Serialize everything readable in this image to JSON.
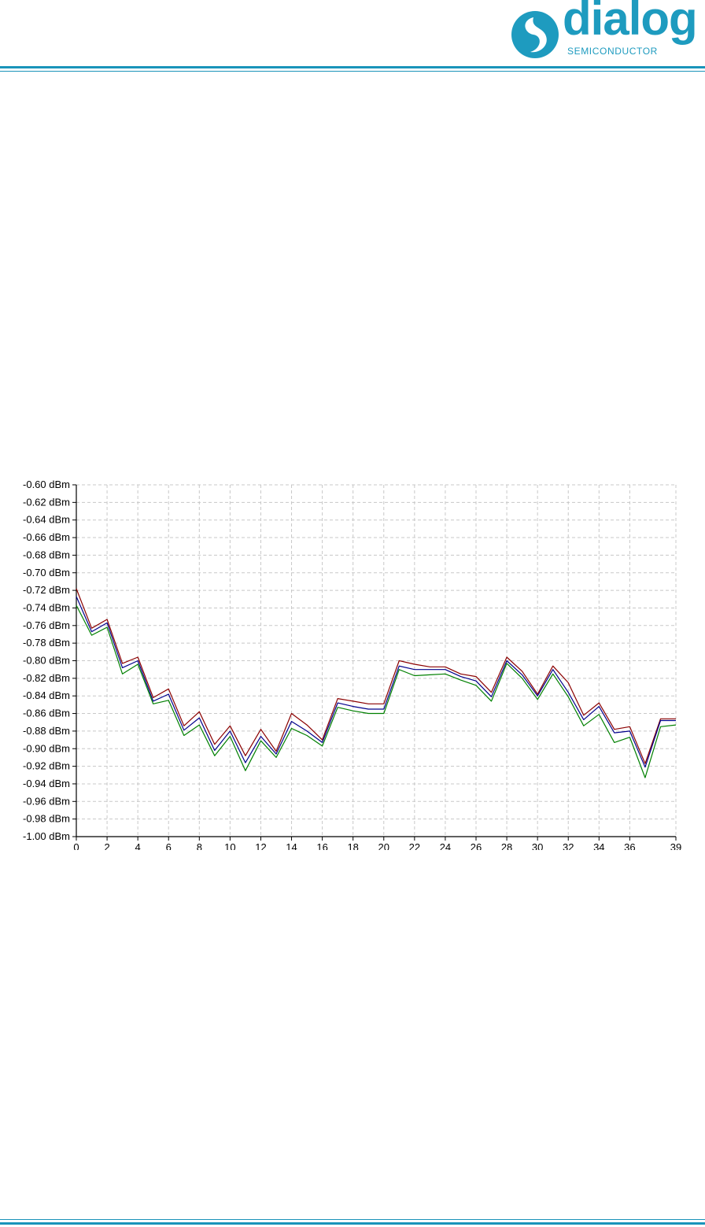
{
  "header": {
    "logo_text": "dialog",
    "logo_subtext": "SEMICONDUCTOR",
    "brand_color": "#1e9bbf"
  },
  "chart_data": {
    "type": "line",
    "title": "",
    "xlabel": "",
    "ylabel": "",
    "xlim": [
      0,
      39
    ],
    "ylim": [
      -1.0,
      -0.6
    ],
    "grid": true,
    "x_ticks": [
      "0",
      "2",
      "4",
      "6",
      "8",
      "10",
      "12",
      "14",
      "16",
      "18",
      "20",
      "22",
      "24",
      "26",
      "28",
      "30",
      "32",
      "34",
      "36",
      "39"
    ],
    "y_ticks": [
      "-0.60 dBm",
      "-0.62 dBm",
      "-0.64 dBm",
      "-0.66 dBm",
      "-0.68 dBm",
      "-0.70 dBm",
      "-0.72 dBm",
      "-0.74 dBm",
      "-0.76 dBm",
      "-0.78 dBm",
      "-0.80 dBm",
      "-0.82 dBm",
      "-0.84 dBm",
      "-0.86 dBm",
      "-0.88 dBm",
      "-0.90 dBm",
      "-0.92 dBm",
      "-0.94 dBm",
      "-0.96 dBm",
      "-0.98 dBm",
      "-1.00 dBm"
    ],
    "x": [
      0,
      1,
      2,
      3,
      4,
      5,
      6,
      7,
      8,
      9,
      10,
      11,
      12,
      13,
      14,
      15,
      16,
      17,
      18,
      19,
      20,
      21,
      22,
      23,
      24,
      25,
      26,
      27,
      28,
      29,
      30,
      31,
      32,
      33,
      34,
      35,
      36,
      37,
      38,
      39
    ],
    "series": [
      {
        "color": "#8b0000",
        "values": [
          -0.718,
          -0.763,
          -0.753,
          -0.803,
          -0.796,
          -0.842,
          -0.832,
          -0.874,
          -0.858,
          -0.895,
          -0.874,
          -0.908,
          -0.878,
          -0.903,
          -0.86,
          -0.873,
          -0.89,
          -0.843,
          -0.846,
          -0.849,
          -0.849,
          -0.8,
          -0.804,
          -0.807,
          -0.807,
          -0.815,
          -0.818,
          -0.836,
          -0.796,
          -0.812,
          -0.838,
          -0.806,
          -0.825,
          -0.862,
          -0.848,
          -0.878,
          -0.875,
          -0.917,
          -0.866,
          -0.866
        ]
      },
      {
        "color": "#00008b",
        "values": [
          -0.727,
          -0.767,
          -0.757,
          -0.808,
          -0.8,
          -0.846,
          -0.838,
          -0.879,
          -0.865,
          -0.902,
          -0.88,
          -0.916,
          -0.886,
          -0.906,
          -0.869,
          -0.88,
          -0.893,
          -0.848,
          -0.852,
          -0.855,
          -0.855,
          -0.806,
          -0.81,
          -0.81,
          -0.81,
          -0.818,
          -0.823,
          -0.841,
          -0.8,
          -0.816,
          -0.84,
          -0.81,
          -0.836,
          -0.867,
          -0.852,
          -0.882,
          -0.88,
          -0.921,
          -0.868,
          -0.868
        ]
      },
      {
        "color": "#008000",
        "values": [
          -0.737,
          -0.771,
          -0.762,
          -0.815,
          -0.804,
          -0.849,
          -0.845,
          -0.885,
          -0.873,
          -0.908,
          -0.886,
          -0.925,
          -0.891,
          -0.91,
          -0.877,
          -0.885,
          -0.897,
          -0.853,
          -0.857,
          -0.86,
          -0.86,
          -0.81,
          -0.817,
          -0.816,
          -0.815,
          -0.822,
          -0.828,
          -0.846,
          -0.803,
          -0.82,
          -0.844,
          -0.815,
          -0.841,
          -0.874,
          -0.861,
          -0.893,
          -0.887,
          -0.933,
          -0.875,
          -0.873
        ]
      }
    ]
  }
}
